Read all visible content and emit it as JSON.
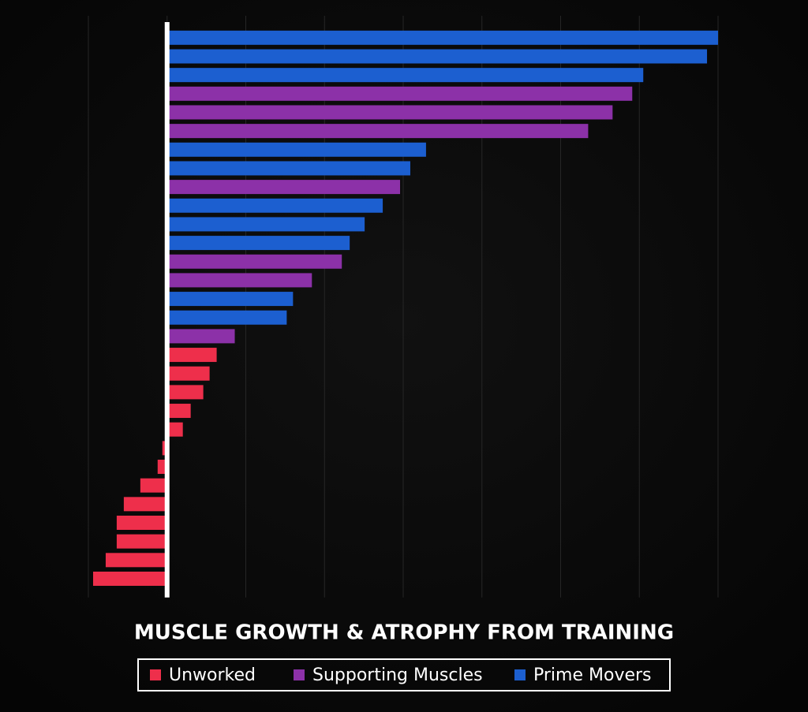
{
  "chart_data": {
    "type": "barh",
    "title": "MUSCLE GROWTH & ATROPHY FROM TRAINING",
    "categories": [
      null,
      null,
      null,
      null,
      null,
      null,
      null,
      null,
      null,
      null,
      null,
      null,
      null,
      null,
      null,
      null,
      null,
      null,
      null,
      null,
      null,
      null,
      null,
      null,
      null,
      null,
      null,
      null,
      null,
      null
    ],
    "series": [
      {
        "name": "Unworked",
        "color": "#ee2f4b",
        "values": [
          null,
          null,
          null,
          null,
          null,
          null,
          null,
          null,
          null,
          null,
          null,
          null,
          null,
          null,
          null,
          null,
          null,
          0.63,
          0.54,
          0.46,
          0.3,
          0.2,
          -0.06,
          -0.12,
          -0.34,
          -0.55,
          -0.64,
          -0.64,
          -0.78,
          -0.94
        ]
      },
      {
        "name": "Supporting Muscles",
        "color": "#8c31a8",
        "values": [
          null,
          null,
          null,
          5.91,
          5.66,
          5.35,
          null,
          null,
          2.96,
          null,
          null,
          null,
          2.22,
          1.84,
          null,
          null,
          0.86,
          null,
          null,
          null,
          null,
          null,
          null,
          null,
          null,
          null,
          null,
          null,
          null,
          null
        ]
      },
      {
        "name": "Prime Movers",
        "color": "#1c5fd0",
        "values": [
          7.0,
          6.86,
          6.05,
          null,
          null,
          null,
          3.29,
          3.09,
          null,
          2.74,
          2.51,
          2.32,
          null,
          null,
          1.6,
          1.52,
          null,
          null,
          null,
          null,
          null,
          null,
          null,
          null,
          null,
          null,
          null,
          null,
          null,
          null
        ]
      }
    ],
    "xlim": [
      -1,
      7
    ],
    "xticks": [
      -1,
      0,
      1,
      2,
      3,
      4,
      5,
      6,
      7
    ],
    "grid": true
  }
}
